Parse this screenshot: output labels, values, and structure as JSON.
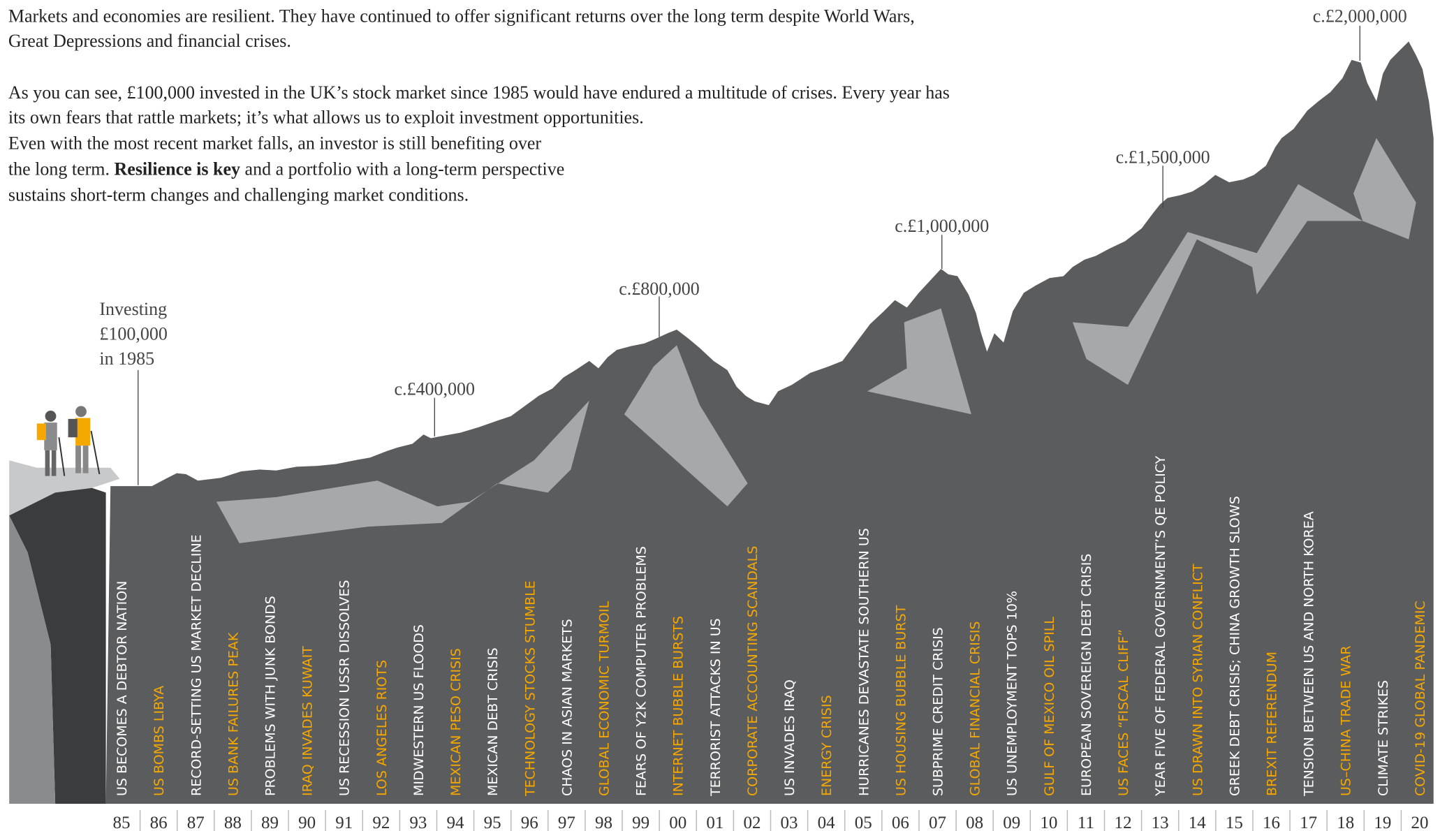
{
  "intro": {
    "p1": [
      "Markets and economies are resilient. They have continued to offer significant returns over the long term despite World Wars,",
      "Great Depressions and financial crises."
    ],
    "p2": [
      "As you can see, £100,000 invested in the UK’s stock market since 1985 would have endured a multitude of crises. Every year has",
      "its own fears that rattle markets; it’s what allows us to exploit investment opportunities.",
      "Even with the most recent market falls, an investor is still benefiting over"
    ],
    "p2_bold_line": {
      "before": "the long term. ",
      "bold": "Resilience is key",
      "after": " and a portfolio with a long-term perspective"
    },
    "p2_last": "sustains short-term changes and challenging market conditions."
  },
  "start_label": [
    "Investing",
    "£100,000",
    "in 1985"
  ],
  "peaks": [
    "c.£400,000",
    "c.£800,000",
    "c.£1,000,000",
    "c.£1,500,000",
    "c.£2,000,000"
  ],
  "years": [
    {
      "year": "85",
      "event": "US BECOMES A DEBTOR NATION",
      "color": "#ffffff"
    },
    {
      "year": "86",
      "event": "US BOMBS LIBYA",
      "color": "#f5a800"
    },
    {
      "year": "87",
      "event": "RECORD-SETTING US MARKET DECLINE",
      "color": "#ffffff"
    },
    {
      "year": "88",
      "event": "US BANK FAILURES PEAK",
      "color": "#f5a800"
    },
    {
      "year": "89",
      "event": "PROBLEMS WITH JUNK BONDS",
      "color": "#ffffff"
    },
    {
      "year": "90",
      "event": "IRAQ INVADES KUWAIT",
      "color": "#f5a800"
    },
    {
      "year": "91",
      "event": "US RECESSION USSR DISSOLVES",
      "color": "#ffffff"
    },
    {
      "year": "92",
      "event": "LOS ANGELES RIOTS",
      "color": "#f5a800"
    },
    {
      "year": "93",
      "event": "MIDWESTERN US FLOODS",
      "color": "#ffffff"
    },
    {
      "year": "94",
      "event": "MEXICAN PESO CRISIS",
      "color": "#f5a800"
    },
    {
      "year": "95",
      "event": "MEXICAN DEBT CRISIS",
      "color": "#ffffff"
    },
    {
      "year": "96",
      "event": "TECHNOLOGY STOCKS STUMBLE",
      "color": "#f5a800"
    },
    {
      "year": "97",
      "event": "CHAOS IN ASIAN MARKETS",
      "color": "#ffffff"
    },
    {
      "year": "98",
      "event": "GLOBAL ECONOMIC TURMOIL",
      "color": "#f5a800"
    },
    {
      "year": "99",
      "event": "FEARS OF Y2K COMPUTER PROBLEMS",
      "color": "#ffffff"
    },
    {
      "year": "00",
      "event": "INTERNET BUBBLE BURSTS",
      "color": "#f5a800"
    },
    {
      "year": "01",
      "event": "TERRORIST ATTACKS IN US",
      "color": "#ffffff"
    },
    {
      "year": "02",
      "event": "CORPORATE ACCOUNTING SCANDALS",
      "color": "#f5a800"
    },
    {
      "year": "03",
      "event": "US INVADES IRAQ",
      "color": "#ffffff"
    },
    {
      "year": "04",
      "event": "ENERGY CRISIS",
      "color": "#f5a800"
    },
    {
      "year": "05",
      "event": "HURRICANES DEVASTATE SOUTHERN US",
      "color": "#ffffff"
    },
    {
      "year": "06",
      "event": "US HOUSING BUBBLE BURST",
      "color": "#f5a800"
    },
    {
      "year": "07",
      "event": "SUBPRIME CREDIT CRISIS",
      "color": "#ffffff"
    },
    {
      "year": "08",
      "event": "GLOBAL FINANCIAL CRISIS",
      "color": "#f5a800"
    },
    {
      "year": "09",
      "event": "US UNEMPLOYMENT TOPS 10%",
      "color": "#ffffff"
    },
    {
      "year": "10",
      "event": "GULF OF MEXICO OIL SPILL",
      "color": "#f5a800"
    },
    {
      "year": "11",
      "event": "EUROPEAN SOVEREIGN DEBT CRISIS",
      "color": "#ffffff"
    },
    {
      "year": "12",
      "event": "US FACES “FISCAL CLIFF”",
      "color": "#f5a800"
    },
    {
      "year": "13",
      "event": "YEAR FIVE OF FEDERAL GOVERNMENT’S QE POLICY",
      "color": "#ffffff"
    },
    {
      "year": "14",
      "event": "US DRAWN INTO SYRIAN CONFLICT",
      "color": "#f5a800"
    },
    {
      "year": "15",
      "event": "GREEK DEBT CRISIS; CHINA GROWTH SLOWS",
      "color": "#ffffff"
    },
    {
      "year": "16",
      "event": "BREXIT REFERENDUM",
      "color": "#f5a800"
    },
    {
      "year": "17",
      "event": "TENSION BETWEEN US AND NORTH KOREA",
      "color": "#ffffff"
    },
    {
      "year": "18",
      "event": "US–CHINA TRADE WAR",
      "color": "#f5a800"
    },
    {
      "year": "19",
      "event": "CLIMATE STRIKES",
      "color": "#ffffff"
    },
    {
      "year": "20",
      "event": "COVID-19 GLOBAL PANDEMIC",
      "color": "#f5a800"
    }
  ]
}
